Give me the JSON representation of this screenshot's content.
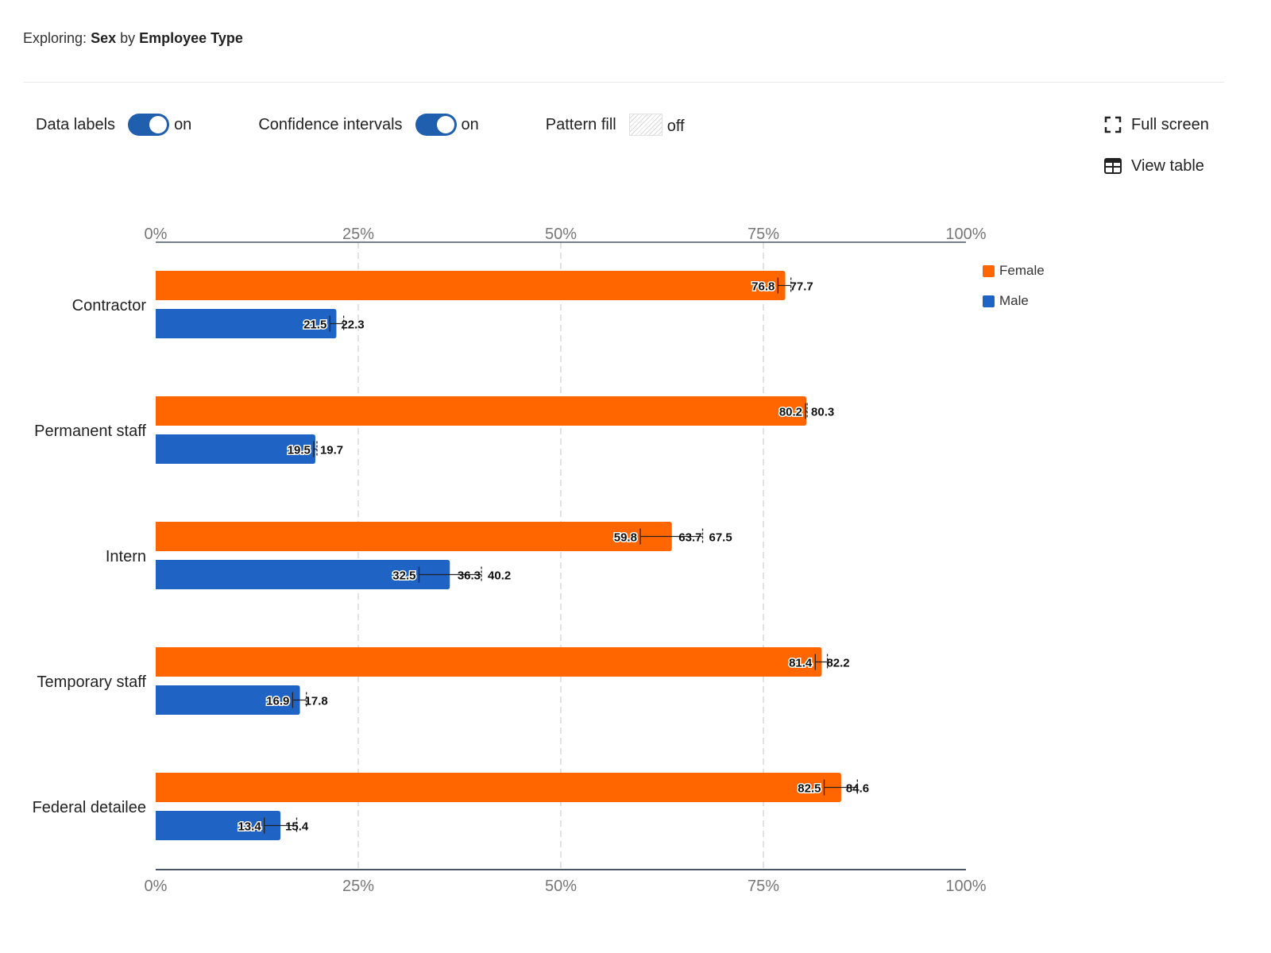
{
  "header": {
    "prefix": "Exploring:",
    "measure": "Sex",
    "joiner": "by",
    "dimension": "Employee Type"
  },
  "controls": {
    "data_labels": {
      "label": "Data labels",
      "state": "on",
      "enabled": true
    },
    "confidence_intervals": {
      "label": "Confidence intervals",
      "state": "on",
      "enabled": true
    },
    "pattern_fill": {
      "label": "Pattern fill",
      "state": "off",
      "enabled": false
    }
  },
  "actions": {
    "full_screen": {
      "label": "Full screen",
      "icon": "fullscreen-icon"
    },
    "view_table": {
      "label": "View table",
      "icon": "table-icon"
    }
  },
  "colors": {
    "female": "#ff6600",
    "male": "#1f63c4",
    "grid": "#d9d9d9",
    "axis": "#4a5563",
    "toggle_on": "#1f5fae"
  },
  "chart_data": {
    "type": "bar",
    "orientation": "horizontal",
    "title": "Sex by Employee Type",
    "xlabel": "",
    "ylabel": "",
    "xlim": [
      0,
      100
    ],
    "x_ticks": [
      "0%",
      "25%",
      "50%",
      "75%",
      "100%"
    ],
    "x_tick_values": [
      0,
      25,
      50,
      75,
      100
    ],
    "grid": true,
    "legend_position": "top-right",
    "categories": [
      "Contractor",
      "Permanent staff",
      "Intern",
      "Temporary staff",
      "Federal detailee"
    ],
    "series": [
      {
        "name": "Female",
        "color": "#ff6600",
        "values": [
          77.7,
          80.3,
          63.7,
          82.2,
          84.6
        ],
        "ci_lower": [
          76.8,
          80.2,
          59.8,
          81.4,
          82.5
        ],
        "ci_upper": [
          78.4,
          80.4,
          67.5,
          82.9,
          86.6
        ],
        "labels": [
          [
            "76.8",
            "77.7"
          ],
          [
            "80.2",
            "80.3"
          ],
          [
            "59.8",
            "63.7",
            "67.5"
          ],
          [
            "81.4",
            "82.2"
          ],
          [
            "82.5",
            "84.6"
          ]
        ]
      },
      {
        "name": "Male",
        "color": "#1f63c4",
        "values": [
          22.3,
          19.7,
          36.3,
          17.8,
          15.4
        ],
        "ci_lower": [
          21.5,
          19.5,
          32.5,
          16.9,
          13.4
        ],
        "ci_upper": [
          23.2,
          19.9,
          40.2,
          18.6,
          17.4
        ],
        "labels": [
          [
            "21.5",
            "22.3"
          ],
          [
            "19.5",
            "19.7"
          ],
          [
            "32.5",
            "36.3",
            "40.2"
          ],
          [
            "16.9",
            "17.8"
          ],
          [
            "13.4",
            "15.4"
          ]
        ]
      }
    ]
  }
}
